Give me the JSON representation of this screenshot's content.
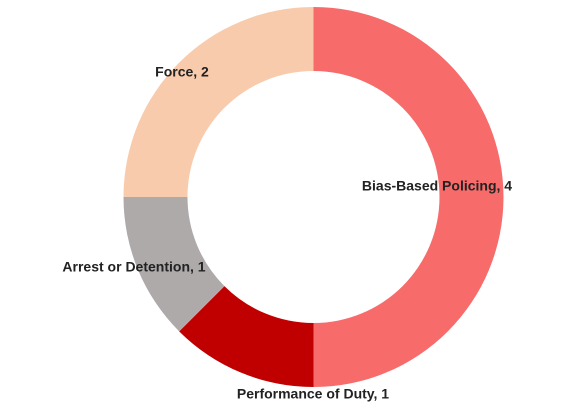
{
  "chart_data": {
    "type": "donut",
    "categories": [
      "Bias-Based Policing",
      "Performance of Duty",
      "Arrest or Detention",
      "Force"
    ],
    "values": [
      4,
      1,
      1,
      2
    ],
    "value_labels": [
      "Bias-Based Policing, 4",
      "Performance of Duty, 1",
      "Arrest or Detention, 1",
      "Force, 2"
    ],
    "colors": [
      "#f76b6b",
      "#c00000",
      "#aeaaaa",
      "#f8cbad"
    ]
  }
}
